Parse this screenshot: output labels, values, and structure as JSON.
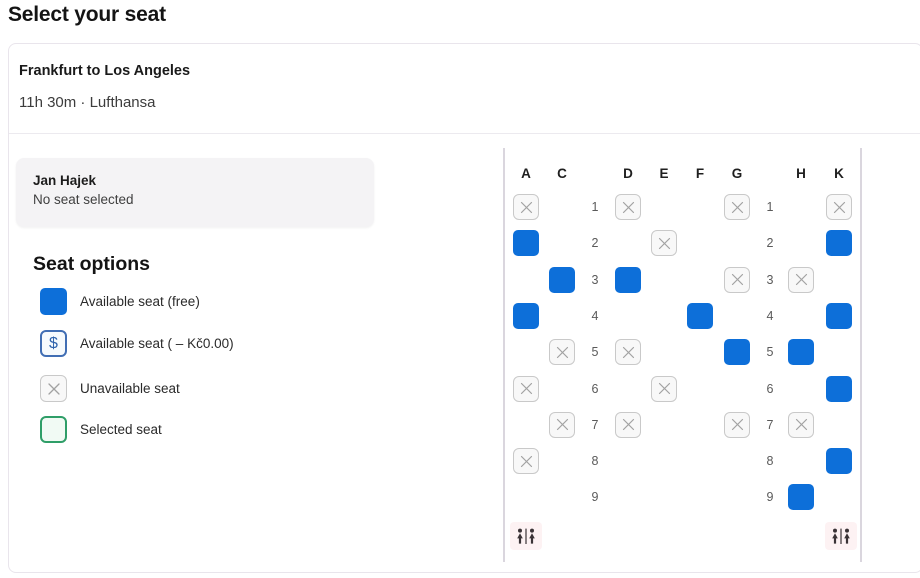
{
  "page": {
    "title": "Select your seat"
  },
  "flight": {
    "route": "Frankfurt to Los Angeles",
    "details": "11h 30m · Lufthansa"
  },
  "passenger": {
    "name": "Jan Hajek",
    "status": "No seat selected"
  },
  "legend": {
    "title": "Seat options",
    "items": [
      {
        "type": "available-free",
        "label": "Available seat (free)"
      },
      {
        "type": "available-paid",
        "label": "Available seat ( – Kč0.00)",
        "symbol": "$"
      },
      {
        "type": "unavailable",
        "label": "Unavailable seat"
      },
      {
        "type": "selected",
        "label": "Selected seat"
      }
    ]
  },
  "seat_map": {
    "columns": [
      "A",
      "C",
      "D",
      "E",
      "F",
      "G",
      "H",
      "K"
    ],
    "rows": [
      {
        "number": "1",
        "states": [
          "unavailable",
          "none",
          "unavailable",
          "none",
          "none",
          "unavailable",
          "none",
          "unavailable"
        ]
      },
      {
        "number": "2",
        "states": [
          "available",
          "none",
          "none",
          "unavailable",
          "none",
          "none",
          "none",
          "available"
        ]
      },
      {
        "number": "3",
        "states": [
          "none",
          "available",
          "available",
          "none",
          "none",
          "unavailable",
          "unavailable",
          "none"
        ]
      },
      {
        "number": "4",
        "states": [
          "available",
          "none",
          "none",
          "none",
          "available",
          "none",
          "none",
          "available"
        ]
      },
      {
        "number": "5",
        "states": [
          "none",
          "unavailable",
          "unavailable",
          "none",
          "none",
          "available",
          "available",
          "none"
        ]
      },
      {
        "number": "6",
        "states": [
          "unavailable",
          "none",
          "none",
          "unavailable",
          "none",
          "none",
          "none",
          "available"
        ]
      },
      {
        "number": "7",
        "states": [
          "none",
          "unavailable",
          "unavailable",
          "none",
          "none",
          "unavailable",
          "unavailable",
          "none"
        ]
      },
      {
        "number": "8",
        "states": [
          "unavailable",
          "none",
          "none",
          "none",
          "none",
          "none",
          "none",
          "available"
        ]
      },
      {
        "number": "9",
        "states": [
          "none",
          "none",
          "none",
          "none",
          "none",
          "none",
          "available",
          "none"
        ]
      }
    ],
    "facilities": "lavatory"
  },
  "colors": {
    "available_seat": "#0d6fd9",
    "unavailable_seat_border": "#c9c9c9",
    "paid_seat_border": "#416eb4",
    "selected_seat_border": "#2f9e68",
    "lavatory_bg": "#fdf2f3"
  }
}
